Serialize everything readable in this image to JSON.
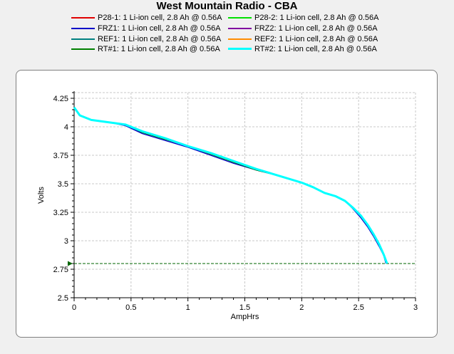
{
  "chart_data": {
    "type": "line",
    "title": "West Mountain Radio - CBA",
    "xlabel": "AmpHrs",
    "ylabel": "Volts",
    "xlim": [
      0,
      3
    ],
    "ylim": [
      2.5,
      4.3
    ],
    "x_ticks": [
      "0",
      "0.5",
      "1",
      "1.5",
      "2",
      "2.5",
      "3"
    ],
    "y_ticks": [
      "2.5",
      "2.75",
      "3",
      "3.25",
      "3.5",
      "3.75",
      "4",
      "4.25"
    ],
    "grid": true,
    "legend_position": "top",
    "cutoff_line": {
      "y": 2.8,
      "color": "#006400",
      "style": "dashed"
    },
    "series": [
      {
        "name": "P28-1: 1 Li-ion cell, 2.8 Ah @ 0.56A",
        "color": "#e00000",
        "points": [
          [
            0,
            4.17
          ],
          [
            0.05,
            4.1
          ],
          [
            0.15,
            4.06
          ],
          [
            0.3,
            4.04
          ],
          [
            0.45,
            4.02
          ],
          [
            0.6,
            3.95
          ],
          [
            0.8,
            3.89
          ],
          [
            1.0,
            3.83
          ],
          [
            1.2,
            3.76
          ],
          [
            1.4,
            3.69
          ],
          [
            1.6,
            3.62
          ],
          [
            1.8,
            3.57
          ],
          [
            2.0,
            3.51
          ],
          [
            2.1,
            3.47
          ],
          [
            2.2,
            3.42
          ],
          [
            2.3,
            3.39
          ],
          [
            2.38,
            3.35
          ],
          [
            2.45,
            3.29
          ],
          [
            2.52,
            3.22
          ],
          [
            2.58,
            3.14
          ],
          [
            2.63,
            3.06
          ],
          [
            2.68,
            2.97
          ],
          [
            2.72,
            2.88
          ],
          [
            2.75,
            2.8
          ]
        ]
      },
      {
        "name": "P28-2: 1 Li-ion cell, 2.8 Ah @ 0.56A",
        "color": "#00e000",
        "points": [
          [
            0,
            4.17
          ],
          [
            0.05,
            4.1
          ],
          [
            0.15,
            4.06
          ],
          [
            0.3,
            4.04
          ],
          [
            0.45,
            4.02
          ],
          [
            0.6,
            3.96
          ],
          [
            0.8,
            3.9
          ],
          [
            1.0,
            3.83
          ],
          [
            1.2,
            3.76
          ],
          [
            1.4,
            3.69
          ],
          [
            1.6,
            3.62
          ],
          [
            1.8,
            3.57
          ],
          [
            2.0,
            3.51
          ],
          [
            2.1,
            3.47
          ],
          [
            2.2,
            3.42
          ],
          [
            2.3,
            3.39
          ],
          [
            2.38,
            3.35
          ],
          [
            2.45,
            3.29
          ],
          [
            2.52,
            3.22
          ],
          [
            2.58,
            3.14
          ],
          [
            2.63,
            3.06
          ],
          [
            2.68,
            2.97
          ],
          [
            2.72,
            2.88
          ],
          [
            2.75,
            2.8
          ]
        ]
      },
      {
        "name": "FRZ1: 1 Li-ion cell, 2.8 Ah @ 0.56A",
        "color": "#0000c8",
        "points": [
          [
            0,
            4.17
          ],
          [
            0.05,
            4.1
          ],
          [
            0.15,
            4.06
          ],
          [
            0.3,
            4.04
          ],
          [
            0.45,
            4.01
          ],
          [
            0.6,
            3.94
          ],
          [
            0.8,
            3.88
          ],
          [
            1.0,
            3.82
          ],
          [
            1.2,
            3.75
          ],
          [
            1.4,
            3.68
          ],
          [
            1.6,
            3.62
          ],
          [
            1.8,
            3.57
          ],
          [
            2.0,
            3.51
          ],
          [
            2.1,
            3.47
          ],
          [
            2.2,
            3.42
          ],
          [
            2.3,
            3.39
          ],
          [
            2.38,
            3.35
          ],
          [
            2.45,
            3.28
          ],
          [
            2.52,
            3.2
          ],
          [
            2.58,
            3.12
          ],
          [
            2.63,
            3.04
          ],
          [
            2.68,
            2.95
          ],
          [
            2.72,
            2.87
          ],
          [
            2.74,
            2.8
          ]
        ]
      },
      {
        "name": "FRZ2: 1 Li-ion cell, 2.8 Ah @ 0.56A",
        "color": "#8000a0",
        "points": [
          [
            0,
            4.17
          ],
          [
            0.05,
            4.1
          ],
          [
            0.15,
            4.06
          ],
          [
            0.3,
            4.04
          ],
          [
            0.45,
            4.02
          ],
          [
            0.6,
            3.95
          ],
          [
            0.8,
            3.89
          ],
          [
            1.0,
            3.83
          ],
          [
            1.2,
            3.76
          ],
          [
            1.4,
            3.69
          ],
          [
            1.6,
            3.62
          ],
          [
            1.8,
            3.57
          ],
          [
            2.0,
            3.51
          ],
          [
            2.1,
            3.47
          ],
          [
            2.2,
            3.42
          ],
          [
            2.3,
            3.39
          ],
          [
            2.38,
            3.35
          ],
          [
            2.45,
            3.29
          ],
          [
            2.52,
            3.21
          ],
          [
            2.58,
            3.13
          ],
          [
            2.63,
            3.05
          ],
          [
            2.68,
            2.96
          ],
          [
            2.72,
            2.88
          ],
          [
            2.75,
            2.8
          ]
        ]
      },
      {
        "name": "REF1: 1 Li-ion cell, 2.8 Ah @ 0.56A",
        "color": "#008080",
        "points": [
          [
            0,
            4.17
          ],
          [
            0.05,
            4.1
          ],
          [
            0.15,
            4.06
          ],
          [
            0.3,
            4.04
          ],
          [
            0.45,
            4.02
          ],
          [
            0.6,
            3.95
          ],
          [
            0.8,
            3.89
          ],
          [
            1.0,
            3.83
          ],
          [
            1.2,
            3.76
          ],
          [
            1.4,
            3.69
          ],
          [
            1.6,
            3.63
          ],
          [
            1.8,
            3.57
          ],
          [
            2.0,
            3.51
          ],
          [
            2.1,
            3.47
          ],
          [
            2.2,
            3.42
          ],
          [
            2.3,
            3.39
          ],
          [
            2.38,
            3.35
          ],
          [
            2.45,
            3.29
          ],
          [
            2.52,
            3.22
          ],
          [
            2.58,
            3.14
          ],
          [
            2.63,
            3.06
          ],
          [
            2.68,
            2.97
          ],
          [
            2.72,
            2.88
          ],
          [
            2.75,
            2.8
          ]
        ]
      },
      {
        "name": "REF2: 1 Li-ion cell, 2.8 Ah @ 0.56A",
        "color": "#ff8c00",
        "points": [
          [
            0,
            4.17
          ],
          [
            0.05,
            4.1
          ],
          [
            0.15,
            4.06
          ],
          [
            0.3,
            4.04
          ],
          [
            0.45,
            4.02
          ],
          [
            0.6,
            3.96
          ],
          [
            0.8,
            3.9
          ],
          [
            1.0,
            3.83
          ],
          [
            1.2,
            3.76
          ],
          [
            1.4,
            3.69
          ],
          [
            1.6,
            3.63
          ],
          [
            1.8,
            3.57
          ],
          [
            2.0,
            3.51
          ],
          [
            2.1,
            3.47
          ],
          [
            2.2,
            3.42
          ],
          [
            2.3,
            3.39
          ],
          [
            2.38,
            3.35
          ],
          [
            2.45,
            3.29
          ],
          [
            2.52,
            3.22
          ],
          [
            2.58,
            3.14
          ],
          [
            2.63,
            3.06
          ],
          [
            2.68,
            2.97
          ],
          [
            2.72,
            2.88
          ],
          [
            2.75,
            2.8
          ]
        ]
      },
      {
        "name": "RT#1: 1 Li-ion cell, 2.8 Ah @ 0.56A",
        "color": "#008000",
        "points": [
          [
            0,
            4.17
          ],
          [
            0.05,
            4.1
          ],
          [
            0.15,
            4.06
          ],
          [
            0.3,
            4.04
          ],
          [
            0.45,
            4.02
          ],
          [
            0.6,
            3.95
          ],
          [
            0.8,
            3.89
          ],
          [
            1.0,
            3.83
          ],
          [
            1.2,
            3.76
          ],
          [
            1.4,
            3.69
          ],
          [
            1.6,
            3.62
          ],
          [
            1.8,
            3.57
          ],
          [
            2.0,
            3.51
          ],
          [
            2.1,
            3.47
          ],
          [
            2.2,
            3.42
          ],
          [
            2.3,
            3.39
          ],
          [
            2.38,
            3.35
          ],
          [
            2.45,
            3.29
          ],
          [
            2.52,
            3.22
          ],
          [
            2.58,
            3.14
          ],
          [
            2.63,
            3.06
          ],
          [
            2.68,
            2.97
          ],
          [
            2.72,
            2.88
          ],
          [
            2.75,
            2.8
          ]
        ]
      },
      {
        "name": "RT#2: 1 Li-ion cell, 2.8 Ah @ 0.56A",
        "color": "#00ffff",
        "points": [
          [
            0,
            4.17
          ],
          [
            0.05,
            4.1
          ],
          [
            0.15,
            4.06
          ],
          [
            0.3,
            4.04
          ],
          [
            0.45,
            4.02
          ],
          [
            0.6,
            3.96
          ],
          [
            0.8,
            3.9
          ],
          [
            1.0,
            3.83
          ],
          [
            1.2,
            3.77
          ],
          [
            1.4,
            3.7
          ],
          [
            1.6,
            3.63
          ],
          [
            1.8,
            3.57
          ],
          [
            2.0,
            3.51
          ],
          [
            2.1,
            3.47
          ],
          [
            2.2,
            3.42
          ],
          [
            2.3,
            3.39
          ],
          [
            2.38,
            3.35
          ],
          [
            2.45,
            3.29
          ],
          [
            2.52,
            3.22
          ],
          [
            2.58,
            3.14
          ],
          [
            2.63,
            3.06
          ],
          [
            2.68,
            2.97
          ],
          [
            2.72,
            2.88
          ],
          [
            2.75,
            2.8
          ]
        ]
      }
    ]
  }
}
